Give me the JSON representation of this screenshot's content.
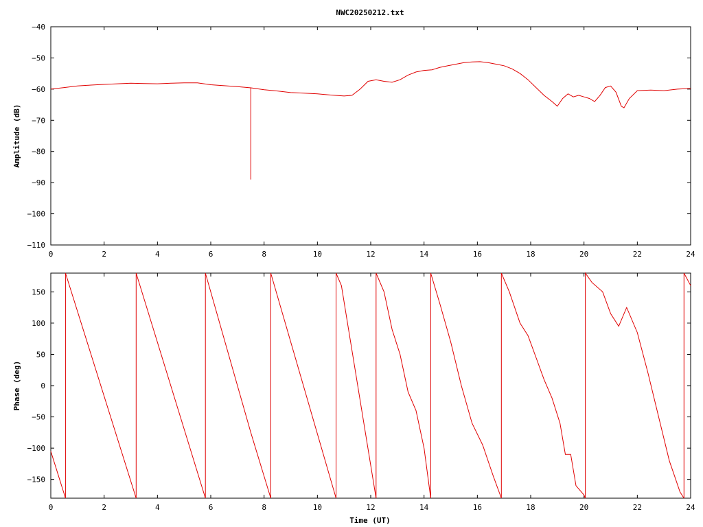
{
  "title": "NWC20250212.txt",
  "colors": {
    "series": "#e00000",
    "axis": "#000000",
    "background": "#ffffff"
  },
  "chart_data": [
    {
      "type": "line",
      "ylabel": "Amplitude (dB)",
      "xlabel": "",
      "xlim": [
        0,
        24
      ],
      "ylim": [
        -110,
        -40
      ],
      "xticks": [
        0,
        2,
        4,
        6,
        8,
        10,
        12,
        14,
        16,
        18,
        20,
        22,
        24
      ],
      "yticks": [
        -40,
        -50,
        -60,
        -70,
        -80,
        -90,
        -100,
        -110
      ],
      "tick_labels_x": [
        "0",
        "2",
        "4",
        "6",
        "8",
        "10",
        "12",
        "14",
        "16",
        "18",
        "20",
        "22",
        "24"
      ],
      "tick_labels_y": [
        "−40",
        "−50",
        "−60",
        "−70",
        "−80",
        "−90",
        "−100",
        "−110"
      ],
      "grid": false,
      "series": [
        {
          "x": [
            0,
            0.5,
            1,
            1.5,
            2,
            2.5,
            3,
            3.5,
            4,
            4.5,
            5,
            5.5,
            6,
            6.5,
            7,
            7.5,
            7.5,
            7.5,
            8,
            8.5,
            9,
            9.5,
            10,
            10.5,
            11,
            11.3,
            11.6,
            11.9,
            12.2,
            12.5,
            12.8,
            13.1,
            13.4,
            13.7,
            14,
            14.3,
            14.6,
            14.9,
            15.2,
            15.5,
            15.8,
            16.1,
            16.4,
            16.7,
            17,
            17.3,
            17.6,
            17.9,
            18.2,
            18.5,
            18.8,
            19,
            19.2,
            19.4,
            19.6,
            19.8,
            20,
            20.2,
            20.4,
            20.6,
            20.8,
            21,
            21.2,
            21.4,
            21.5,
            21.7,
            22,
            22.5,
            23,
            23.5,
            24
          ],
          "y": [
            -60,
            -59.5,
            -59,
            -58.7,
            -58.5,
            -58.3,
            -58.1,
            -58.2,
            -58.3,
            -58.1,
            -58,
            -58,
            -58.6,
            -58.9,
            -59.2,
            -59.6,
            -89,
            -59.6,
            -60.2,
            -60.6,
            -61.1,
            -61.3,
            -61.5,
            -61.9,
            -62.2,
            -62,
            -60,
            -57.5,
            -57,
            -57.5,
            -57.8,
            -57,
            -55.5,
            -54.5,
            -54,
            -53.8,
            -53,
            -52.5,
            -52,
            -51.5,
            -51.3,
            -51.2,
            -51.5,
            -52,
            -52.5,
            -53.5,
            -55,
            -57,
            -59.5,
            -62,
            -64,
            -65.5,
            -63,
            -61.5,
            -62.5,
            -62,
            -62.5,
            -63,
            -64,
            -62,
            -59.5,
            -59,
            -61,
            -65.5,
            -66,
            -63,
            -60.5,
            -60.3,
            -60.5,
            -60,
            -59.8
          ]
        }
      ]
    },
    {
      "type": "line",
      "ylabel": "Phase (deg)",
      "xlabel": "Time (UT)",
      "xlim": [
        0,
        24
      ],
      "ylim": [
        -180,
        180
      ],
      "xticks": [
        0,
        2,
        4,
        6,
        8,
        10,
        12,
        14,
        16,
        18,
        20,
        22,
        24
      ],
      "yticks": [
        150,
        100,
        50,
        0,
        -50,
        -100,
        -150
      ],
      "tick_labels_x": [
        "0",
        "2",
        "4",
        "6",
        "8",
        "10",
        "12",
        "14",
        "16",
        "18",
        "20",
        "22",
        "24"
      ],
      "tick_labels_y": [
        "150",
        "100",
        "50",
        "0",
        "−50",
        "−100",
        "−150"
      ],
      "grid": false,
      "series": [
        {
          "x": [
            0,
            0.55
          ],
          "y": [
            -105,
            -180
          ]
        },
        {
          "x": [
            0.55,
            0.55,
            3.2
          ],
          "y": [
            -180,
            180,
            -180
          ]
        },
        {
          "x": [
            3.2,
            3.2,
            5.8
          ],
          "y": [
            -180,
            180,
            -180
          ]
        },
        {
          "x": [
            5.8,
            5.8,
            7.5,
            8.25
          ],
          "y": [
            -180,
            180,
            -75,
            -180
          ]
        },
        {
          "x": [
            8.25,
            8.25,
            10.7
          ],
          "y": [
            -180,
            180,
            -180
          ]
        },
        {
          "x": [
            10.7,
            10.7,
            10.9,
            12.2
          ],
          "y": [
            -180,
            180,
            160,
            -180
          ]
        },
        {
          "x": [
            12.2,
            12.2,
            12.5,
            12.8,
            13.1,
            13.4,
            13.7,
            14.0,
            14.25
          ],
          "y": [
            -180,
            180,
            150,
            90,
            50,
            -10,
            -40,
            -100,
            -180
          ]
        },
        {
          "x": [
            14.25,
            14.25,
            14.6,
            15.0,
            15.4,
            15.8,
            16.2,
            16.6,
            16.9
          ],
          "y": [
            -180,
            180,
            130,
            70,
            0,
            -60,
            -95,
            -145,
            -180
          ]
        },
        {
          "x": [
            16.9,
            16.9,
            17.2,
            17.6,
            17.9,
            18.2,
            18.5,
            18.8,
            19.1,
            19.3,
            19.5,
            19.7,
            20.0,
            20.05
          ],
          "y": [
            -180,
            180,
            150,
            100,
            80,
            45,
            10,
            -20,
            -60,
            -110,
            -110,
            -160,
            -175,
            -180
          ]
        },
        {
          "x": [
            20.05,
            20.05,
            20.3,
            20.7,
            21.0,
            21.3,
            21.6,
            22.0,
            22.4,
            22.8,
            23.2,
            23.6,
            23.75
          ],
          "y": [
            -180,
            180,
            165,
            150,
            115,
            95,
            125,
            85,
            20,
            -50,
            -120,
            -170,
            -180
          ]
        },
        {
          "x": [
            23.75,
            23.75,
            24.0
          ],
          "y": [
            -180,
            180,
            160
          ]
        }
      ]
    }
  ]
}
